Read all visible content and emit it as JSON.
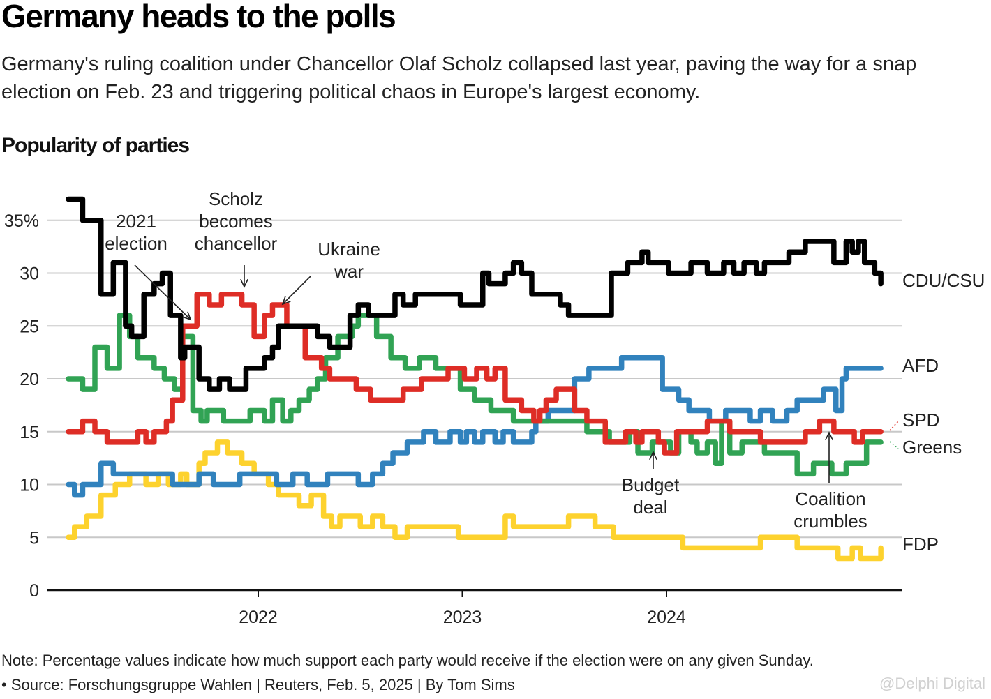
{
  "header": {
    "title": "Germany heads to the polls",
    "subtitle": "Germany's ruling coalition under Chancellor Olaf Scholz collapsed last year, paving the way for a snap election on Feb. 23 and triggering political chaos in Europe's largest economy.",
    "section_title": "Popularity of parties"
  },
  "footer": {
    "note": "Note: Percentage values indicate how much support each party would receive if the election were on any given Sunday.",
    "source": "• Source: Forschungsgruppe Wahlen | Reuters, Feb. 5, 2025 | By Tom Sims",
    "watermark": "@Delphi Digital"
  },
  "chart_data": {
    "type": "line",
    "step": true,
    "title": "Popularity of parties",
    "xlabel": "",
    "ylabel": "",
    "ylim": [
      0,
      37
    ],
    "xlim": [
      2021.0,
      2025.2
    ],
    "yticks": [
      0,
      5,
      10,
      15,
      20,
      25,
      30,
      35
    ],
    "ytick_labels": [
      "0",
      "5",
      "10",
      "15",
      "20",
      "25",
      "30",
      "35%"
    ],
    "xticks": [
      2022,
      2023,
      2024
    ],
    "xtick_labels": [
      "2022",
      "2023",
      "2024"
    ],
    "grid": true,
    "legend": "direct-labels-right",
    "series": [
      {
        "name": "CDU/CSU",
        "color": "#000000",
        "x": [
          2021.07,
          2021.14,
          2021.23,
          2021.29,
          2021.35,
          2021.38,
          2021.44,
          2021.49,
          2021.53,
          2021.57,
          2021.62,
          2021.64,
          2021.71,
          2021.76,
          2021.81,
          2021.86,
          2021.94,
          2022.03,
          2022.07,
          2022.1,
          2022.29,
          2022.35,
          2022.45,
          2022.49,
          2022.54,
          2022.67,
          2022.71,
          2022.77,
          2022.99,
          2023.1,
          2023.13,
          2023.21,
          2023.25,
          2023.29,
          2023.34,
          2023.38,
          2023.48,
          2023.52,
          2023.57,
          2023.63,
          2023.73,
          2023.81,
          2023.88,
          2023.91,
          2024.01,
          2024.12,
          2024.2,
          2024.28,
          2024.33,
          2024.38,
          2024.44,
          2024.48,
          2024.6,
          2024.68,
          2024.82,
          2024.88,
          2024.91,
          2024.94,
          2024.97,
          2025.02,
          2025.05
        ],
        "y": [
          37,
          35,
          28,
          31,
          25,
          24,
          28,
          29,
          30,
          26,
          22,
          23,
          20,
          19,
          20,
          19,
          21,
          22,
          23,
          25,
          24,
          23,
          26,
          27,
          26,
          28,
          27,
          28,
          27,
          30,
          29,
          30,
          31,
          30,
          28,
          28,
          27,
          26,
          26,
          26,
          30,
          31,
          32,
          31,
          30,
          31,
          30,
          31,
          30,
          31,
          30,
          31,
          32,
          33,
          31,
          33,
          32,
          33,
          31,
          30,
          29
        ]
      },
      {
        "name": "AFD",
        "color": "#3182bd",
        "x": [
          2021.07,
          2021.1,
          2021.14,
          2021.23,
          2021.29,
          2021.48,
          2021.58,
          2021.71,
          2021.78,
          2021.91,
          2022.09,
          2022.17,
          2022.24,
          2022.34,
          2022.49,
          2022.56,
          2022.61,
          2022.66,
          2022.73,
          2022.81,
          2022.87,
          2022.94,
          2022.99,
          2023.02,
          2023.06,
          2023.1,
          2023.16,
          2023.2,
          2023.25,
          2023.34,
          2023.36,
          2023.42,
          2023.55,
          2023.62,
          2023.78,
          2023.98,
          2024.06,
          2024.11,
          2024.21,
          2024.29,
          2024.41,
          2024.46,
          2024.52,
          2024.59,
          2024.64,
          2024.77,
          2024.83,
          2024.86,
          2024.88,
          2024.92,
          2025.05
        ],
        "y": [
          10,
          9,
          10,
          12,
          11,
          11,
          10,
          11,
          10,
          11,
          10,
          11,
          10,
          11,
          10,
          11,
          12,
          13,
          14,
          15,
          14,
          15,
          14,
          15,
          14,
          15,
          14,
          15,
          14,
          15,
          16,
          17,
          20,
          21,
          22,
          19,
          18,
          17,
          16,
          17,
          16,
          17,
          16,
          17,
          18,
          19,
          17,
          20,
          21,
          21,
          21
        ]
      },
      {
        "name": "SPD",
        "color": "#de2d26",
        "x": [
          2021.07,
          2021.14,
          2021.2,
          2021.26,
          2021.41,
          2021.45,
          2021.49,
          2021.55,
          2021.58,
          2021.63,
          2021.7,
          2021.76,
          2021.82,
          2021.92,
          2021.98,
          2022.03,
          2022.07,
          2022.14,
          2022.23,
          2022.31,
          2022.35,
          2022.48,
          2022.55,
          2022.71,
          2022.8,
          2022.93,
          2023.01,
          2023.07,
          2023.12,
          2023.16,
          2023.21,
          2023.29,
          2023.35,
          2023.38,
          2023.41,
          2023.46,
          2023.55,
          2023.61,
          2023.7,
          2023.8,
          2023.85,
          2023.88,
          2023.96,
          2023.99,
          2024.05,
          2024.2,
          2024.31,
          2024.46,
          2024.68,
          2024.75,
          2024.82,
          2024.92,
          2024.96,
          2025.0,
          2025.05
        ],
        "y": [
          15,
          16,
          15,
          14,
          15,
          14,
          15,
          16,
          18,
          25,
          28,
          27,
          28,
          27,
          24,
          26,
          27,
          25,
          22,
          21,
          20,
          19,
          18,
          19,
          20,
          21,
          20,
          21,
          20,
          21,
          18,
          17,
          16,
          17,
          18,
          19,
          17,
          16,
          14,
          15,
          14,
          15,
          14,
          13,
          15,
          16,
          15,
          14,
          15,
          16,
          15,
          14,
          15,
          15,
          15
        ]
      },
      {
        "name": "Greens",
        "color": "#31a354",
        "x": [
          2021.07,
          2021.14,
          2021.2,
          2021.26,
          2021.32,
          2021.37,
          2021.41,
          2021.49,
          2021.54,
          2021.59,
          2021.63,
          2021.68,
          2021.72,
          2021.75,
          2021.83,
          2021.96,
          2022.03,
          2022.07,
          2022.12,
          2022.16,
          2022.2,
          2022.25,
          2022.29,
          2022.33,
          2022.39,
          2022.46,
          2022.49,
          2022.58,
          2022.65,
          2022.72,
          2022.79,
          2022.87,
          2022.99,
          2023.06,
          2023.14,
          2023.25,
          2023.34,
          2023.51,
          2023.61,
          2023.72,
          2023.82,
          2023.86,
          2023.93,
          2024.02,
          2024.06,
          2024.12,
          2024.15,
          2024.2,
          2024.24,
          2024.27,
          2024.31,
          2024.37,
          2024.48,
          2024.64,
          2024.72,
          2024.81,
          2024.88,
          2024.98,
          2025.05
        ],
        "y": [
          20,
          19,
          23,
          21,
          26,
          24,
          22,
          21,
          20,
          19,
          24,
          17,
          16,
          17,
          16,
          17,
          16,
          18,
          16,
          17,
          18,
          19,
          20,
          22,
          24,
          25,
          26,
          24,
          22,
          21,
          22,
          21,
          19,
          18,
          17,
          16,
          16,
          16,
          15,
          14,
          15,
          13,
          14,
          13,
          15,
          14,
          13,
          14,
          12,
          16,
          13,
          14,
          13,
          11,
          12,
          11,
          12,
          14,
          14
        ]
      },
      {
        "name": "FDP",
        "color": "#fdd22e",
        "x": [
          2021.07,
          2021.1,
          2021.16,
          2021.23,
          2021.3,
          2021.37,
          2021.45,
          2021.51,
          2021.56,
          2021.62,
          2021.65,
          2021.71,
          2021.74,
          2021.8,
          2021.85,
          2021.92,
          2021.98,
          2022.05,
          2022.1,
          2022.2,
          2022.26,
          2022.32,
          2022.36,
          2022.4,
          2022.5,
          2022.56,
          2022.61,
          2022.67,
          2022.73,
          2022.84,
          2022.98,
          2023.08,
          2023.21,
          2023.25,
          2023.44,
          2023.52,
          2023.65,
          2023.74,
          2023.95,
          2024.08,
          2024.36,
          2024.46,
          2024.64,
          2024.84,
          2024.91,
          2024.95,
          2025.05
        ],
        "y": [
          5,
          6,
          7,
          9,
          10,
          11,
          10,
          11,
          10,
          11,
          10,
          12,
          13,
          14,
          13,
          12,
          11,
          10,
          9,
          8,
          9,
          7,
          6,
          7,
          6,
          7,
          6,
          5,
          6,
          6,
          5,
          5,
          7,
          6,
          6,
          7,
          6,
          5,
          5,
          4,
          4,
          5,
          4,
          3,
          4,
          3,
          4
        ]
      }
    ],
    "direct_labels": [
      "CDU/CSU",
      "AFD",
      "SPD",
      "Greens",
      "FDP"
    ],
    "annotations": [
      {
        "text": [
          "2021",
          "election"
        ],
        "x": 2021.67,
        "y": 25.2
      },
      {
        "text": [
          "Scholz",
          "becomes",
          "chancellor"
        ],
        "x": 2021.93,
        "y": 28.5
      },
      {
        "text": [
          "Ukraine",
          "war"
        ],
        "x": 2022.12,
        "y": 26.8
      },
      {
        "text": [
          "Budget",
          "deal"
        ],
        "x": 2023.93,
        "y": 13.2
      },
      {
        "text": [
          "Coalition",
          "crumbles"
        ],
        "x": 2024.78,
        "y": 16.0
      }
    ]
  }
}
